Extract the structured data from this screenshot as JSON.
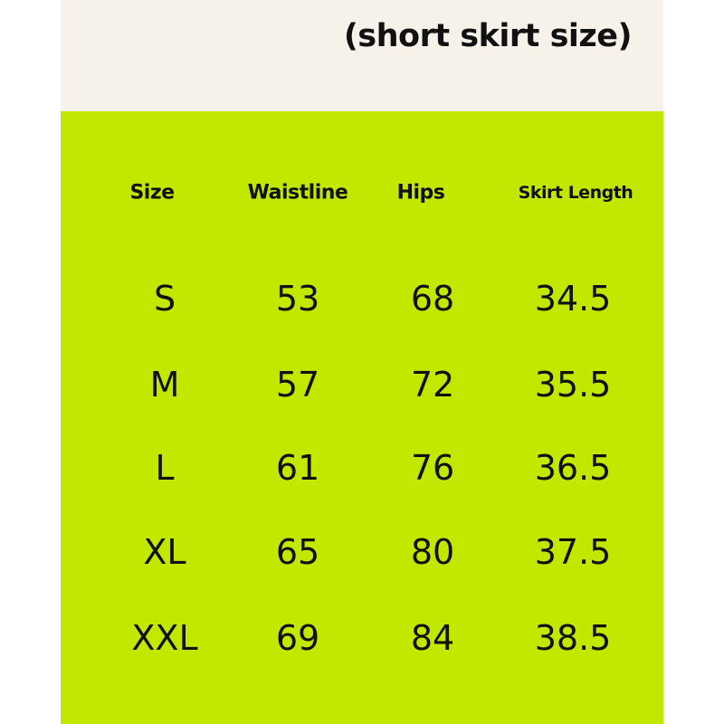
{
  "title": "(short skirt size)",
  "colors": {
    "header_bg": "#f7f2e9",
    "table_bg": "#c3e800"
  },
  "table": {
    "headers": [
      "Size",
      "Waistline",
      "Hips",
      "Skirt Length"
    ],
    "rows": [
      [
        "S",
        "53",
        "68",
        "34.5"
      ],
      [
        "M",
        "57",
        "72",
        "35.5"
      ],
      [
        "L",
        "61",
        "76",
        "36.5"
      ],
      [
        "XL",
        "65",
        "80",
        "37.5"
      ],
      [
        "XXL",
        "69",
        "84",
        "38.5"
      ]
    ]
  }
}
